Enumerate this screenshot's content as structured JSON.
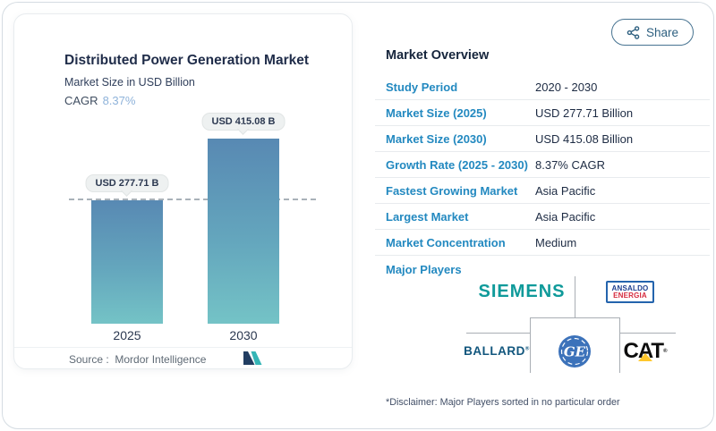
{
  "share_button": {
    "label": "Share"
  },
  "chart_card": {
    "title": "Distributed Power Generation Market",
    "subtitle": "Market Size in USD Billion",
    "cagr_label": "CAGR",
    "cagr_value": "8.37%",
    "source_label": "Source :",
    "source_value": "Mordor Intelligence"
  },
  "chart_data": {
    "type": "bar",
    "title": "Distributed Power Generation Market",
    "ylabel": "Market Size in USD Billion",
    "categories": [
      "2025",
      "2030"
    ],
    "values": [
      277.71,
      415.08
    ],
    "value_labels": [
      "USD 277.71 B",
      "USD 415.08 B"
    ],
    "unit": "USD Billion",
    "ylim": [
      0,
      415.08
    ],
    "grid": false,
    "reference_line": {
      "style": "dashed",
      "value": 277.71
    },
    "bar_color_top": "#5889b3",
    "bar_color_bottom": "#74c3c6"
  },
  "overview": {
    "title": "Market Overview",
    "rows": [
      {
        "label": "Study Period",
        "value": "2020 - 2030"
      },
      {
        "label": "Market Size (2025)",
        "value": "USD 277.71 Billion"
      },
      {
        "label": "Market Size (2030)",
        "value": "USD 415.08 Billion"
      },
      {
        "label": "Growth Rate (2025 - 2030)",
        "value": "8.37% CAGR"
      },
      {
        "label": "Fastest Growing Market",
        "value": "Asia Pacific"
      },
      {
        "label": "Largest Market",
        "value": "Asia Pacific"
      },
      {
        "label": "Market Concentration",
        "value": "Medium"
      }
    ],
    "major_players_label": "Major Players",
    "players": {
      "siemens": "SIEMENS",
      "ansaldo_line1": "ANSALDO",
      "ansaldo_line2": "ENERGIA",
      "ballard": "BALLARD",
      "ballard_reg": "®",
      "ge": "GE",
      "cat": "CAT",
      "cat_reg": "®"
    },
    "disclaimer": "*Disclaimer: Major Players sorted in no particular order"
  },
  "colors": {
    "table_label_blue": "#2389c0",
    "value_navy": "#1d2b43",
    "cagr_light_blue": "#8fb3da",
    "siemens_teal": "#0f9a9a",
    "ballard_blue": "#11567d",
    "ge_blue": "#3c72ba",
    "cat_yellow": "#ffc72c",
    "ansaldo_blue": "#2464ad",
    "ansaldo_red": "#d5293d",
    "share_blue": "#2e6080"
  }
}
